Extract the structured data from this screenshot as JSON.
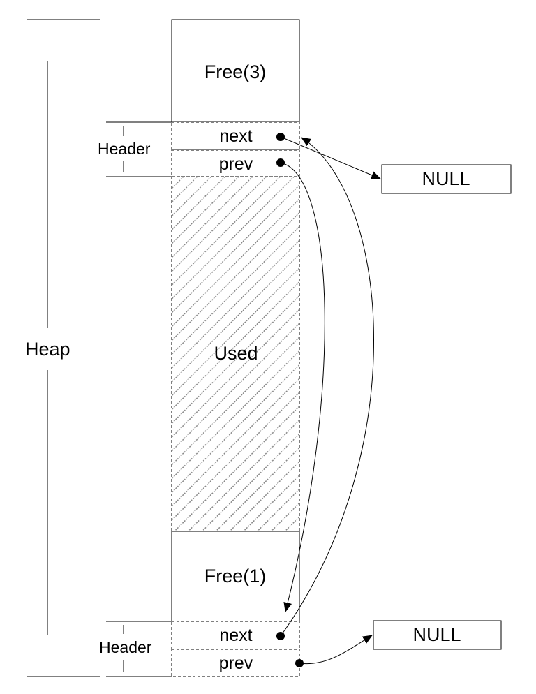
{
  "diagram": {
    "heap_label": "Heap",
    "top_free_block": {
      "label": "Free(3)",
      "header_label": "Header",
      "next_label": "next",
      "prev_label": "prev"
    },
    "used_block": {
      "label": "Used"
    },
    "bottom_free_block": {
      "label": "Free(1)",
      "header_label": "Header",
      "next_label": "next",
      "prev_label": "prev"
    },
    "null_top": "NULL",
    "null_bottom": "NULL"
  }
}
